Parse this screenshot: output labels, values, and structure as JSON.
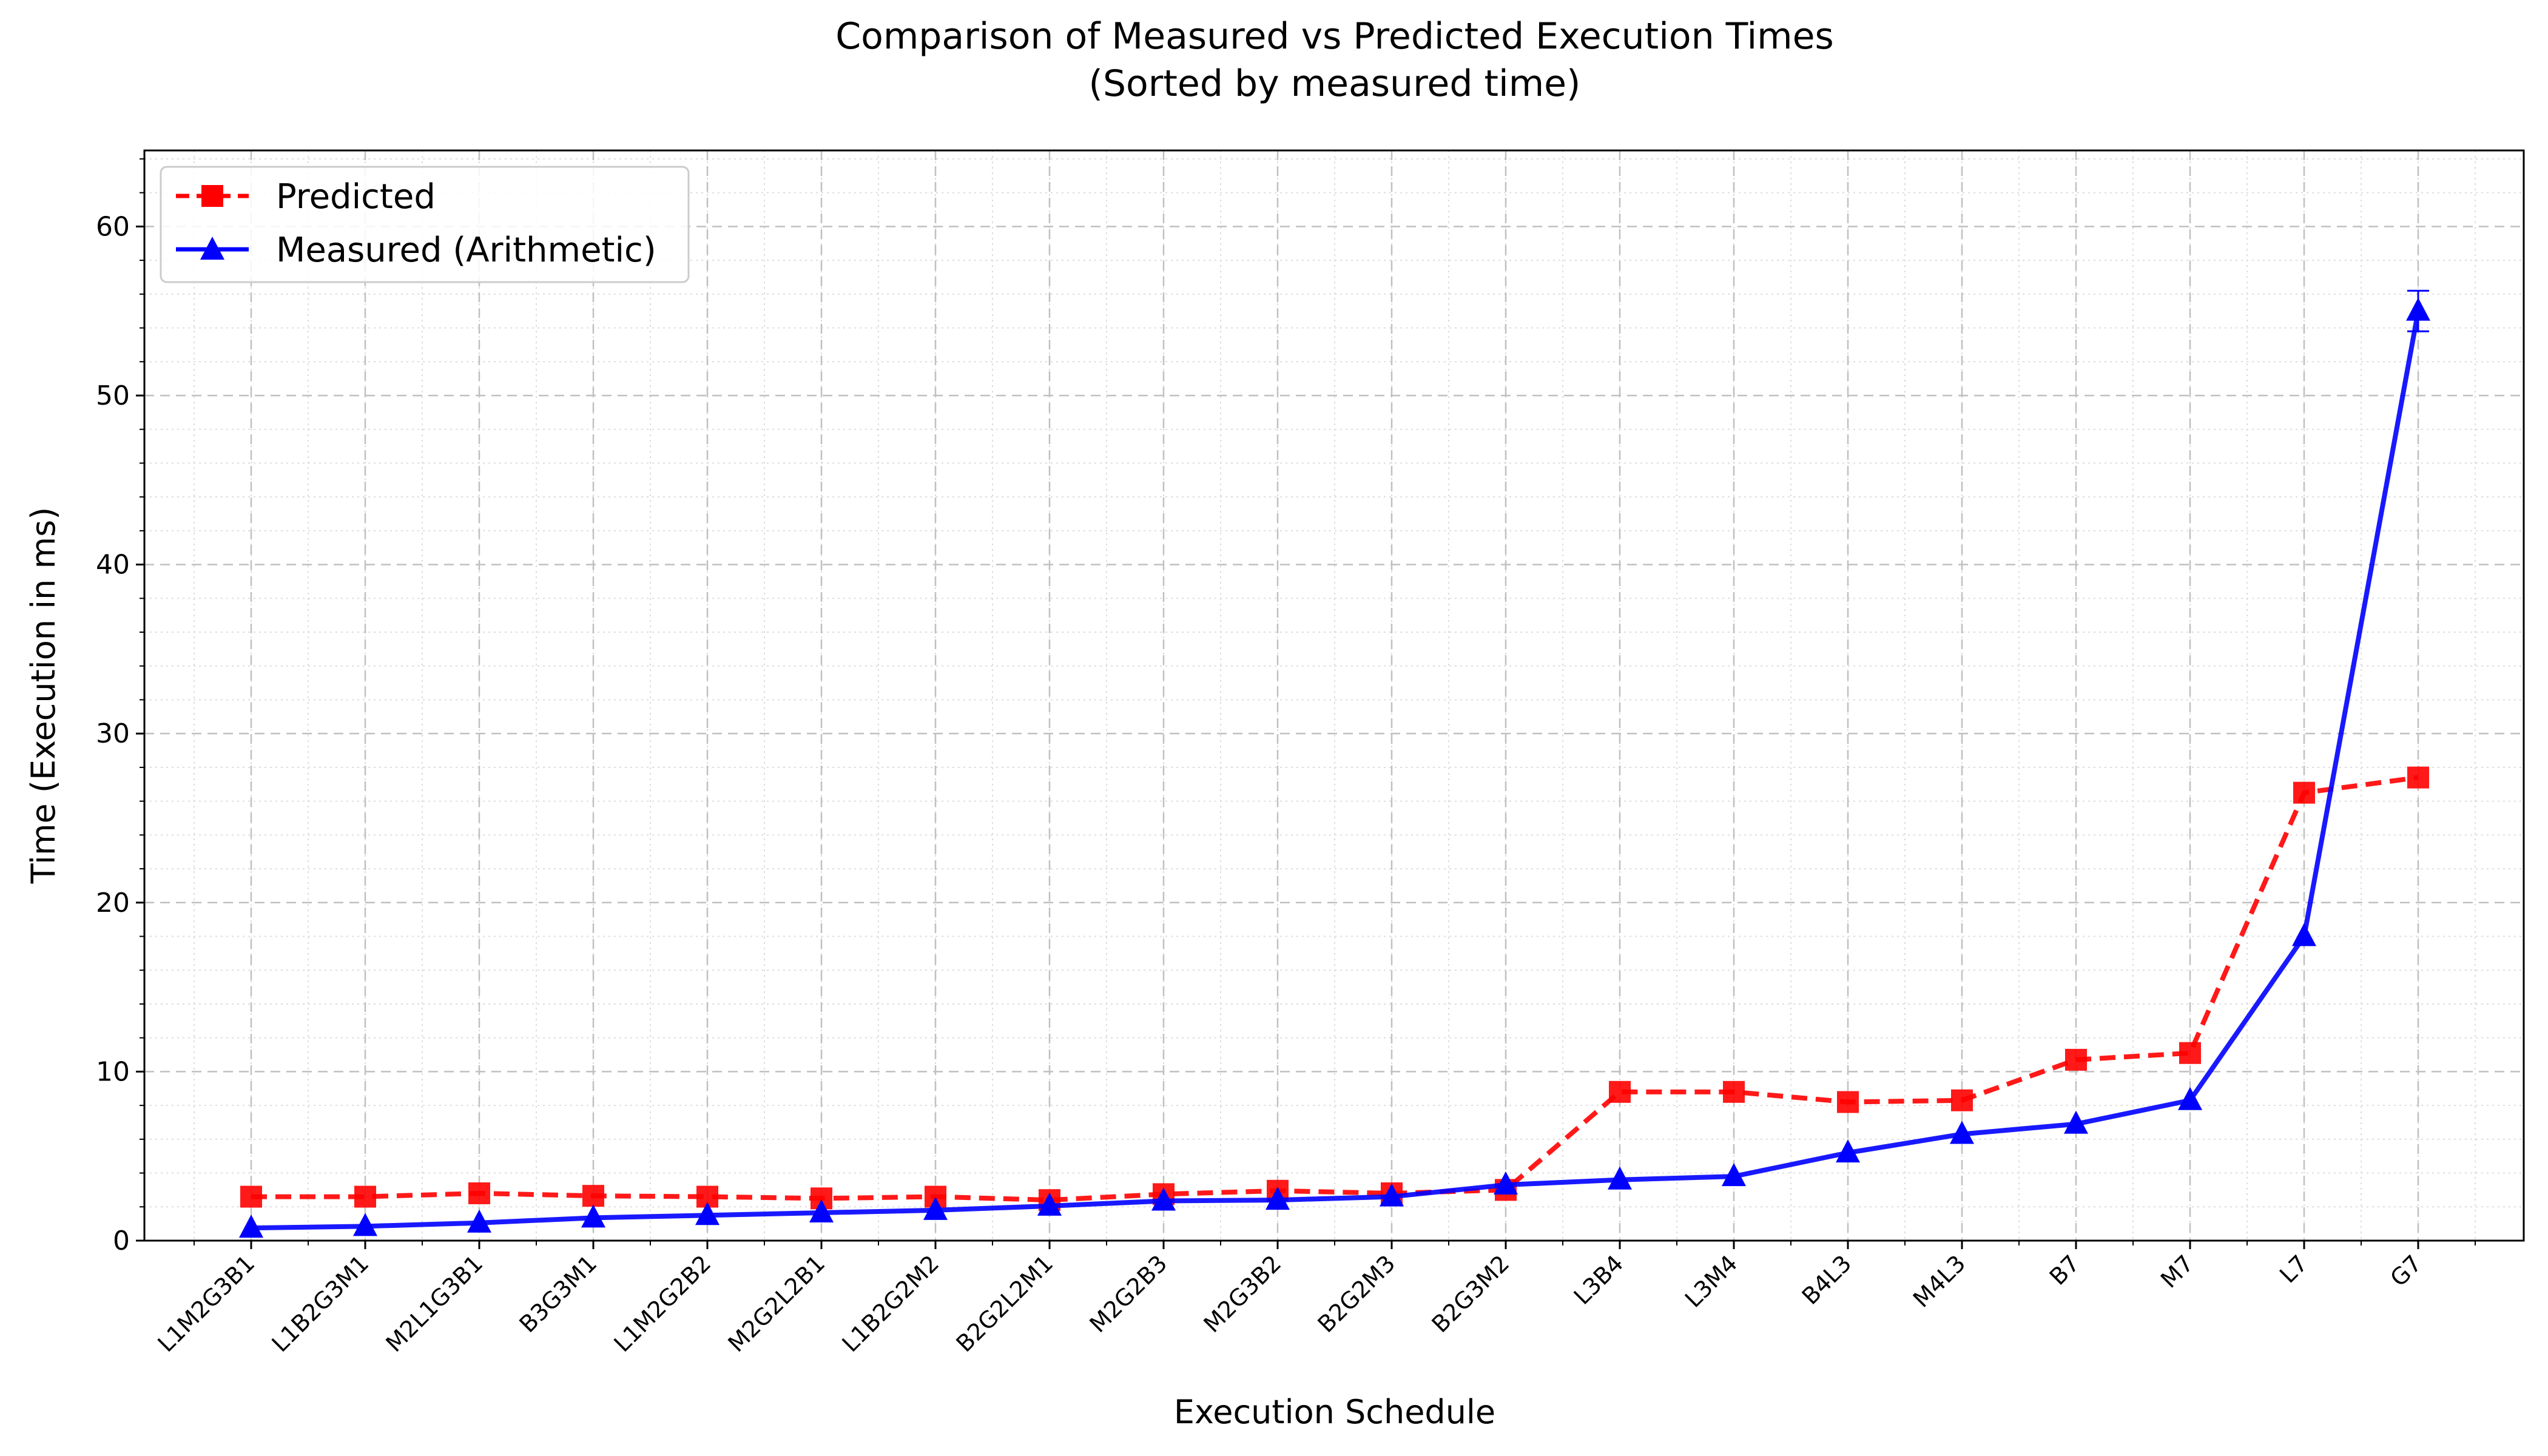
{
  "chart_data": {
    "type": "line",
    "title": "Comparison of Measured vs Predicted Execution Times",
    "subtitle": "(Sorted by measured time)",
    "xlabel": "Execution Schedule",
    "ylabel": "Time (Execution in ms)",
    "ylim": [
      0,
      64.5
    ],
    "yticks": [
      0,
      10,
      20,
      30,
      40,
      50,
      60
    ],
    "grid": true,
    "legend_position": "top-left",
    "categories": [
      "L1M2G3B1",
      "L1B2G3M1",
      "M2L1G3B1",
      "B3G3M1",
      "L1M2G2B2",
      "M2G2L2B1",
      "L1B2G2M2",
      "B2G2L2M1",
      "M2G2B3",
      "M2G3B2",
      "B2G2M3",
      "B2G3M2",
      "L3B4",
      "L3M4",
      "B4L3",
      "M4L3",
      "B7",
      "M7",
      "L7",
      "G7"
    ],
    "series": [
      {
        "name": "Predicted",
        "color": "#ff0000",
        "line_style": "dashed",
        "marker": "square",
        "values": [
          2.6,
          2.6,
          2.8,
          2.65,
          2.6,
          2.5,
          2.6,
          2.4,
          2.75,
          2.95,
          2.8,
          3.0,
          8.8,
          8.8,
          8.2,
          8.3,
          10.7,
          11.1,
          26.5,
          27.4
        ]
      },
      {
        "name": "Measured (Arithmetic)",
        "color": "#0000ff",
        "line_style": "solid",
        "marker": "triangle",
        "values": [
          0.75,
          0.85,
          1.05,
          1.35,
          1.5,
          1.65,
          1.8,
          2.05,
          2.35,
          2.4,
          2.6,
          3.3,
          3.6,
          3.8,
          5.2,
          6.3,
          6.9,
          8.3,
          18.0,
          55.0
        ],
        "error": [
          0,
          0,
          0,
          0,
          0,
          0,
          0,
          0,
          0,
          0,
          0,
          0,
          0,
          0,
          0,
          0,
          0,
          0,
          0,
          1.2
        ]
      }
    ]
  }
}
